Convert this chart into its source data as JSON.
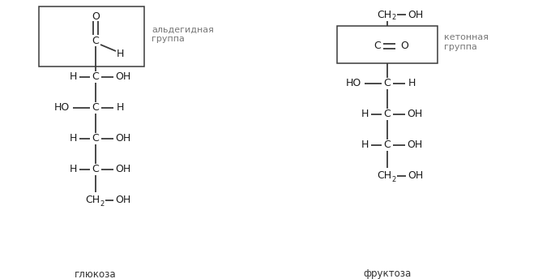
{
  "bg_color": "#ffffff",
  "text_color": "#1a1a1a",
  "line_color": "#3a3a3a",
  "font_size_main": 9,
  "font_size_label": 8.5,
  "font_size_sub": 6,
  "font_size_annot": 8,
  "glucose_label": "глюкоза",
  "fructose_label": "фруктоза",
  "aldehyde_label": "альдегидная\nгруппа",
  "ketone_label": "кетонная\nгруппа"
}
